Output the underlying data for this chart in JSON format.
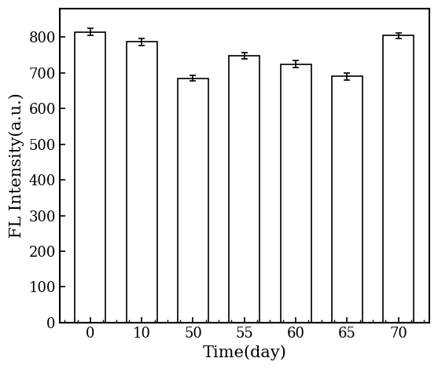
{
  "categories": [
    0,
    10,
    50,
    55,
    60,
    65,
    70
  ],
  "positions": [
    0,
    1,
    2,
    3,
    4,
    5,
    6
  ],
  "values": [
    815,
    787,
    685,
    748,
    725,
    690,
    805
  ],
  "errors": [
    10,
    10,
    8,
    8,
    10,
    10,
    8
  ],
  "bar_width": 0.6,
  "bar_facecolor": "#ffffff",
  "bar_edgecolor": "#000000",
  "bar_linewidth": 1.2,
  "errorbar_color": "#000000",
  "errorbar_capsize": 3,
  "errorbar_linewidth": 1.2,
  "xlabel": "Time(day)",
  "ylabel": "FL Intensity(a.u.)",
  "xlabel_fontsize": 15,
  "ylabel_fontsize": 15,
  "tick_fontsize": 13,
  "xlim": [
    -0.6,
    6.6
  ],
  "ylim": [
    0,
    880
  ],
  "yticks": [
    0,
    100,
    200,
    300,
    400,
    500,
    600,
    700,
    800
  ],
  "background_color": "#ffffff",
  "spine_linewidth": 1.5
}
